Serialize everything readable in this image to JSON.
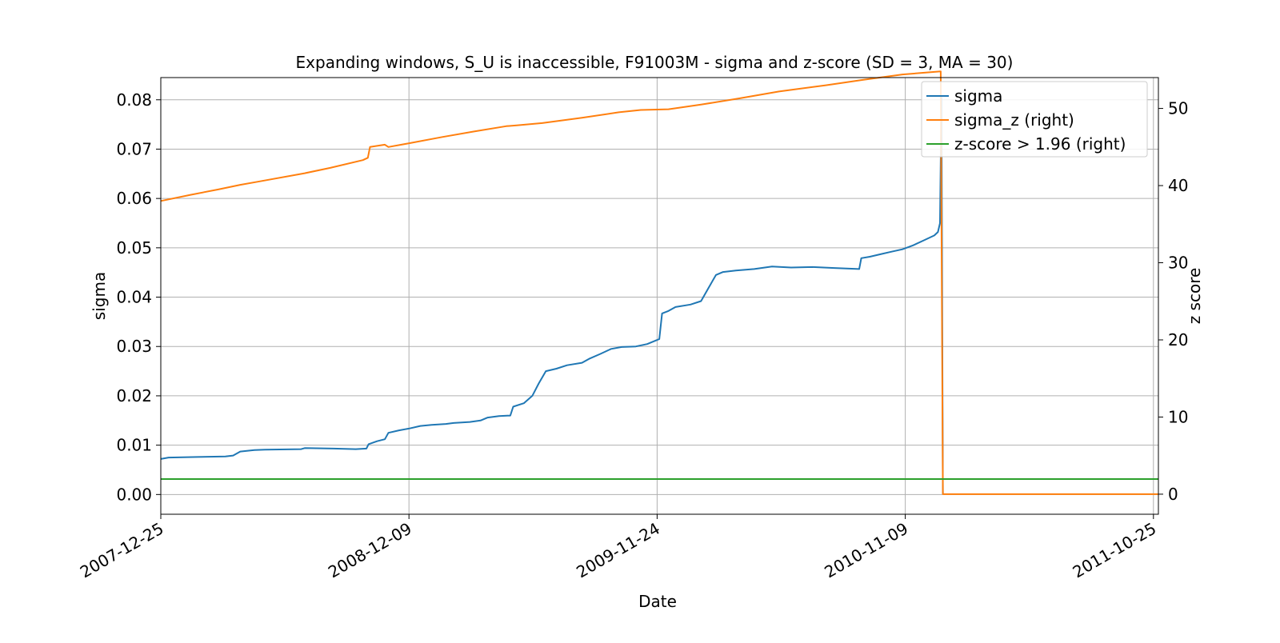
{
  "chart_data": {
    "type": "line",
    "title": "Expanding windows, S_U is inaccessible, F91003M - sigma and z-score (SD = 3, MA = 30)",
    "xlabel": "Date",
    "ylabel": "sigma",
    "y2label": "z score",
    "x_ticks": [
      "2007-12-25",
      "2008-12-09",
      "2009-11-24",
      "2010-11-09",
      "2011-10-25"
    ],
    "xlim": [
      "2007-12-25",
      "2011-11-01"
    ],
    "ylim": [
      -0.004,
      0.0845
    ],
    "y_ticks": [
      "0.00",
      "0.01",
      "0.02",
      "0.03",
      "0.04",
      "0.05",
      "0.06",
      "0.07",
      "0.08"
    ],
    "y2lim": [
      -2.6,
      54
    ],
    "y2_ticks": [
      "0",
      "10",
      "20",
      "30",
      "40",
      "50"
    ],
    "grid": true,
    "legend_position": "top-right",
    "colors": {
      "sigma": "#1f77b4",
      "sigma_z": "#ff7f0e",
      "zscore": "#2ca02c"
    },
    "series": [
      {
        "name": "sigma",
        "axis": "left",
        "points": [
          [
            "2007-12-25",
            0.0072
          ],
          [
            "2008-01-05",
            0.0075
          ],
          [
            "2008-02-15",
            0.0076
          ],
          [
            "2008-03-25",
            0.0077
          ],
          [
            "2008-04-05",
            0.0079
          ],
          [
            "2008-04-15",
            0.0087
          ],
          [
            "2008-05-05",
            0.009
          ],
          [
            "2008-05-20",
            0.0091
          ],
          [
            "2008-07-10",
            0.0092
          ],
          [
            "2008-07-15",
            0.0094
          ],
          [
            "2008-08-25",
            0.0093
          ],
          [
            "2008-09-25",
            0.0092
          ],
          [
            "2008-10-10",
            0.0093
          ],
          [
            "2008-10-13",
            0.0102
          ],
          [
            "2008-10-25",
            0.0108
          ],
          [
            "2008-11-05",
            0.0112
          ],
          [
            "2008-11-10",
            0.0125
          ],
          [
            "2008-11-25",
            0.013
          ],
          [
            "2008-12-10",
            0.0134
          ],
          [
            "2008-12-25",
            0.0139
          ],
          [
            "2009-01-10",
            0.0141
          ],
          [
            "2009-01-30",
            0.0143
          ],
          [
            "2009-02-10",
            0.0145
          ],
          [
            "2009-03-05",
            0.0147
          ],
          [
            "2009-03-20",
            0.015
          ],
          [
            "2009-03-30",
            0.0156
          ],
          [
            "2009-04-15",
            0.0159
          ],
          [
            "2009-05-01",
            0.016
          ],
          [
            "2009-05-05",
            0.0178
          ],
          [
            "2009-05-20",
            0.0185
          ],
          [
            "2009-06-01",
            0.02
          ],
          [
            "2009-06-10",
            0.0225
          ],
          [
            "2009-06-20",
            0.025
          ],
          [
            "2009-07-05",
            0.0255
          ],
          [
            "2009-07-20",
            0.0262
          ],
          [
            "2009-08-10",
            0.0267
          ],
          [
            "2009-08-20",
            0.0275
          ],
          [
            "2009-09-05",
            0.0285
          ],
          [
            "2009-09-20",
            0.0295
          ],
          [
            "2009-10-05",
            0.0299
          ],
          [
            "2009-10-25",
            0.03
          ],
          [
            "2009-11-10",
            0.0305
          ],
          [
            "2009-11-22",
            0.0312
          ],
          [
            "2009-11-27",
            0.0315
          ],
          [
            "2009-12-01",
            0.0367
          ],
          [
            "2009-12-10",
            0.0372
          ],
          [
            "2009-12-20",
            0.038
          ],
          [
            "2010-01-10",
            0.0385
          ],
          [
            "2010-01-25",
            0.0392
          ],
          [
            "2010-02-05",
            0.042
          ],
          [
            "2010-02-15",
            0.0445
          ],
          [
            "2010-02-25",
            0.0451
          ],
          [
            "2010-03-15",
            0.0454
          ],
          [
            "2010-04-10",
            0.0457
          ],
          [
            "2010-05-05",
            0.0462
          ],
          [
            "2010-06-01",
            0.046
          ],
          [
            "2010-07-01",
            0.0461
          ],
          [
            "2010-08-01",
            0.0459
          ],
          [
            "2010-09-05",
            0.0457
          ],
          [
            "2010-09-08",
            0.0479
          ],
          [
            "2010-09-20",
            0.0482
          ],
          [
            "2010-10-05",
            0.0487
          ],
          [
            "2010-10-20",
            0.0492
          ],
          [
            "2010-11-05",
            0.0497
          ],
          [
            "2010-11-20",
            0.0505
          ],
          [
            "2010-12-05",
            0.0515
          ],
          [
            "2010-12-20",
            0.0525
          ],
          [
            "2010-12-25",
            0.0532
          ],
          [
            "2010-12-28",
            0.055
          ],
          [
            "2010-12-30",
            0.0805
          ],
          [
            "2011-01-01",
            0.0
          ]
        ]
      },
      {
        "name": "sigma_z (right)",
        "axis": "right",
        "points": [
          [
            "2007-12-25",
            38.0
          ],
          [
            "2008-02-05",
            38.8
          ],
          [
            "2008-03-15",
            39.5
          ],
          [
            "2008-04-15",
            40.1
          ],
          [
            "2008-05-10",
            40.5
          ],
          [
            "2008-07-15",
            41.6
          ],
          [
            "2008-08-20",
            42.3
          ],
          [
            "2008-10-05",
            43.3
          ],
          [
            "2008-10-12",
            43.6
          ],
          [
            "2008-10-15",
            45.0
          ],
          [
            "2008-11-05",
            45.3
          ],
          [
            "2008-11-10",
            45.0
          ],
          [
            "2008-12-10",
            45.5
          ],
          [
            "2009-01-25",
            46.3
          ],
          [
            "2009-03-10",
            47.0
          ],
          [
            "2009-04-25",
            47.7
          ],
          [
            "2009-05-10",
            47.8
          ],
          [
            "2009-06-15",
            48.1
          ],
          [
            "2009-08-10",
            48.8
          ],
          [
            "2009-10-01",
            49.5
          ],
          [
            "2009-11-01",
            49.8
          ],
          [
            "2009-12-10",
            49.9
          ],
          [
            "2010-01-25",
            50.5
          ],
          [
            "2010-03-20",
            51.3
          ],
          [
            "2010-05-15",
            52.2
          ],
          [
            "2010-07-20",
            53.0
          ],
          [
            "2010-09-10",
            53.7
          ],
          [
            "2010-11-05",
            54.4
          ],
          [
            "2010-12-29",
            54.8
          ],
          [
            "2011-01-01",
            0.0
          ],
          [
            "2011-11-01",
            0.0
          ]
        ]
      },
      {
        "name": "z-score > 1.96 (right)",
        "axis": "right",
        "points": [
          [
            "2007-12-25",
            1.96
          ],
          [
            "2011-11-01",
            1.96
          ]
        ]
      }
    ]
  }
}
